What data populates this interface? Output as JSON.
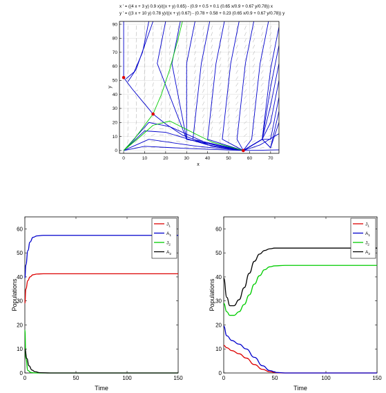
{
  "chart_data": [
    {
      "type": "line",
      "title": "x ' = ((4 x + 3 y) 0.9 x)/((x + y) 0.65) - (0.9 + 0.5 + 0.1 (0.65 x/0.9 + 0.67 y/0.78)) x",
      "subtitle": "y ' = ((3 x + 10 y) 0.78 y)/((x + y) 0.67) - (0.78 + 0.58 + 0.23 (0.65 x/0.9 + 0.67 y/0.78)) y",
      "xlabel": "x",
      "ylabel": "y",
      "xlim": [
        -2,
        74
      ],
      "ylim": [
        -2,
        92
      ],
      "xticks": [
        "0",
        "10",
        "20",
        "30",
        "40",
        "50",
        "60",
        "70"
      ],
      "yticks": [
        "0",
        "10",
        "20",
        "30",
        "40",
        "50",
        "60",
        "70",
        "80",
        "90"
      ],
      "grid": true,
      "equilibria": [
        {
          "x": 0,
          "y": 52
        },
        {
          "x": 14,
          "y": 26
        },
        {
          "x": 57,
          "y": 0
        }
      ],
      "colors": {
        "trajectory": "#0000cc",
        "separatrix": "#00cc00",
        "equilibrium": "#dd0000",
        "field": "#aaaaaa"
      }
    },
    {
      "type": "line",
      "xlabel": "Time",
      "ylabel": "Populations",
      "xlim": [
        0,
        150
      ],
      "ylim": [
        0,
        65
      ],
      "xticks": [
        "0",
        "50",
        "100",
        "150"
      ],
      "yticks": [
        "0",
        "10",
        "20",
        "30",
        "40",
        "50",
        "60"
      ],
      "legend_position": "top-right",
      "series": [
        {
          "name": "J1",
          "label": "J",
          "sub": "1",
          "color": "#dd0000",
          "t": [
            0,
            1,
            3,
            5,
            8,
            12,
            18,
            25,
            40,
            80,
            150
          ],
          "values": [
            29,
            35,
            38.5,
            40,
            40.9,
            41.2,
            41.3,
            41.3,
            41.3,
            41.3,
            41.3
          ]
        },
        {
          "name": "A1",
          "label": "A",
          "sub": "1",
          "color": "#0000cc",
          "t": [
            0,
            1,
            3,
            5,
            8,
            12,
            18,
            25,
            40,
            80,
            150
          ],
          "values": [
            39.5,
            45,
            51,
            54.5,
            56.5,
            57.1,
            57.3,
            57.3,
            57.3,
            57.3,
            57.3
          ]
        },
        {
          "name": "J2",
          "label": "J",
          "sub": "2",
          "color": "#00cc00",
          "t": [
            0,
            1,
            3,
            6,
            10,
            20,
            150
          ],
          "values": [
            18,
            6,
            1,
            0.2,
            0,
            0,
            0
          ]
        },
        {
          "name": "A2",
          "label": "A",
          "sub": "2",
          "color": "#000000",
          "t": [
            0,
            2,
            4,
            7,
            10,
            15,
            25,
            150
          ],
          "values": [
            10,
            6,
            3,
            1.2,
            0.5,
            0.1,
            0,
            0
          ]
        }
      ]
    },
    {
      "type": "line",
      "xlabel": "Time",
      "ylabel": "Populations",
      "xlim": [
        0,
        150
      ],
      "ylim": [
        0,
        65
      ],
      "xticks": [
        "0",
        "50",
        "100",
        "150"
      ],
      "yticks": [
        "0",
        "10",
        "20",
        "30",
        "40",
        "50",
        "60"
      ],
      "legend_position": "top-right",
      "series": [
        {
          "name": "J1",
          "label": "J",
          "sub": "1",
          "color": "#dd0000",
          "t": [
            0,
            3,
            8,
            15,
            22,
            30,
            38,
            45,
            52,
            60,
            150
          ],
          "values": [
            11.5,
            10.5,
            9.3,
            8,
            6.2,
            3.5,
            1.5,
            0.5,
            0.1,
            0,
            0
          ]
        },
        {
          "name": "A1",
          "label": "A",
          "sub": "1",
          "color": "#0000cc",
          "t": [
            0,
            3,
            8,
            15,
            22,
            30,
            38,
            45,
            52,
            60,
            150
          ],
          "values": [
            19.5,
            15.5,
            13.5,
            12,
            10,
            6.5,
            3,
            1,
            0.2,
            0,
            0
          ]
        },
        {
          "name": "J2",
          "label": "J",
          "sub": "2",
          "color": "#00cc00",
          "t": [
            0,
            3,
            6,
            10,
            15,
            20,
            25,
            30,
            35,
            40,
            45,
            50,
            60,
            80,
            150
          ],
          "values": [
            29,
            25.5,
            24,
            24,
            25.5,
            28.5,
            32.5,
            37,
            40.5,
            43,
            44.2,
            44.6,
            44.8,
            44.8,
            44.8
          ]
        },
        {
          "name": "A2",
          "label": "A",
          "sub": "2",
          "color": "#000000",
          "t": [
            0,
            3,
            6,
            10,
            15,
            20,
            25,
            30,
            35,
            40,
            45,
            50,
            60,
            80,
            150
          ],
          "values": [
            39.5,
            31.5,
            28,
            28,
            30.5,
            35.5,
            41.5,
            46.5,
            49.5,
            51,
            51.7,
            52,
            52,
            52,
            52
          ]
        }
      ]
    }
  ]
}
